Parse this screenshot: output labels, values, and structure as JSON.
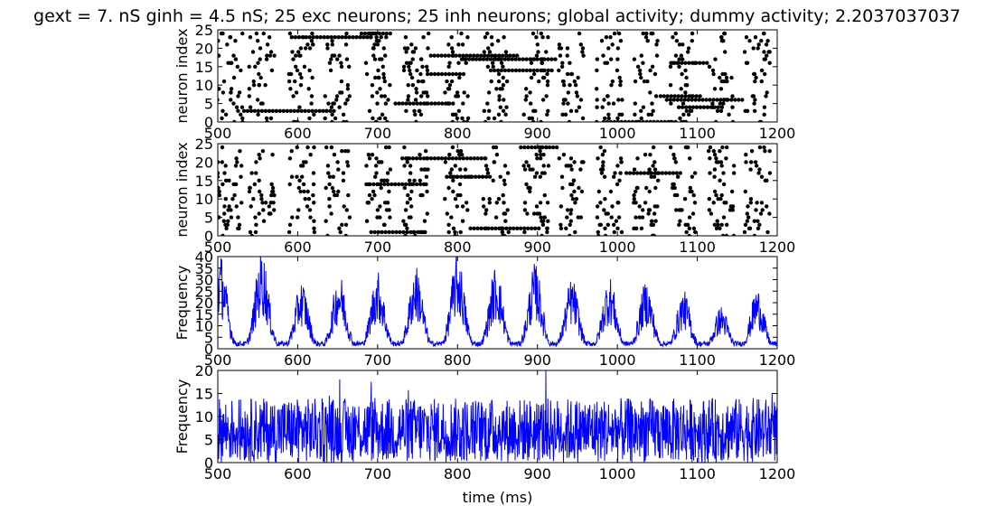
{
  "figure": {
    "title": "gext = 7. nS ginh = 4.5 nS; 25 exc neurons; 25 inh neurons; global activity; dummy activity; 2.2037037037"
  },
  "chart_data": [
    {
      "type": "scatter",
      "name": "exc-raster",
      "xlabel": "",
      "ylabel": "neuron index",
      "xlim": [
        500,
        1200
      ],
      "ylim": [
        0,
        25
      ],
      "xticks": [
        500,
        600,
        700,
        800,
        900,
        1000,
        1100,
        1200
      ],
      "yticks": [
        0,
        5,
        10,
        15,
        20,
        25
      ],
      "marker_color": "#000000",
      "bursts_ms": [
        515,
        555,
        605,
        650,
        700,
        748,
        800,
        848,
        898,
        942,
        990,
        1035,
        1082,
        1130,
        1175
      ]
    },
    {
      "type": "scatter",
      "name": "inh-raster",
      "xlabel": "",
      "ylabel": "neuron index",
      "xlim": [
        500,
        1200
      ],
      "ylim": [
        0,
        25
      ],
      "xticks": [
        500,
        600,
        700,
        800,
        900,
        1000,
        1100,
        1200
      ],
      "yticks": [
        0,
        5,
        10,
        15,
        20,
        25
      ],
      "marker_color": "#000000",
      "bursts_ms": [
        515,
        555,
        605,
        650,
        700,
        748,
        800,
        848,
        898,
        942,
        990,
        1035,
        1082,
        1130,
        1175
      ]
    },
    {
      "type": "line",
      "name": "global-activity",
      "xlabel": "",
      "ylabel": "Frequency",
      "xlim": [
        500,
        1200
      ],
      "ylim": [
        0,
        40
      ],
      "xticks": [
        500,
        600,
        700,
        800,
        900,
        1000,
        1100,
        1200
      ],
      "yticks": [
        0,
        5,
        10,
        15,
        20,
        25,
        30,
        35,
        40
      ],
      "line_color": "#0000ff",
      "peaks": [
        {
          "t": 503,
          "v": 38
        },
        {
          "t": 555,
          "v": 39
        },
        {
          "t": 605,
          "v": 27
        },
        {
          "t": 652,
          "v": 30
        },
        {
          "t": 700,
          "v": 31
        },
        {
          "t": 748,
          "v": 33
        },
        {
          "t": 800,
          "v": 38
        },
        {
          "t": 848,
          "v": 33
        },
        {
          "t": 897,
          "v": 34
        },
        {
          "t": 943,
          "v": 28
        },
        {
          "t": 990,
          "v": 29
        },
        {
          "t": 1036,
          "v": 27
        },
        {
          "t": 1083,
          "v": 23
        },
        {
          "t": 1130,
          "v": 17
        },
        {
          "t": 1175,
          "v": 24
        }
      ],
      "baseline": 3
    },
    {
      "type": "line",
      "name": "dummy-activity",
      "xlabel": "time (ms)",
      "ylabel": "Frequency",
      "xlim": [
        500,
        1200
      ],
      "ylim": [
        0,
        20
      ],
      "xticks": [
        500,
        600,
        700,
        800,
        900,
        1000,
        1100,
        1200
      ],
      "yticks": [
        0,
        5,
        10,
        15,
        20
      ],
      "line_color": "#0000ff",
      "mean": 7,
      "range": [
        0,
        20
      ]
    }
  ]
}
